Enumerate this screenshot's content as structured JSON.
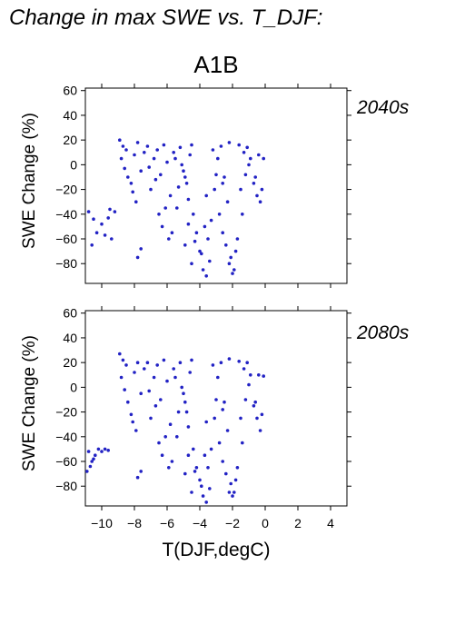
{
  "title": "Change in max SWE vs. T_DJF:",
  "scenario": "A1B",
  "xlabel": "T(DJF,degC)",
  "colors": {
    "points": "#2222c4",
    "axis": "#000000"
  },
  "chart_data": [
    {
      "type": "scatter",
      "panel_label": "2040s",
      "ylabel": "SWE Change (%)",
      "xlim": [
        -11,
        5
      ],
      "ylim": [
        -96,
        62
      ],
      "yticks": [
        -80,
        -60,
        -40,
        -20,
        0,
        20,
        40,
        60
      ],
      "xticks": [
        -10,
        -8,
        -6,
        -4,
        -2,
        0,
        2,
        4
      ],
      "series": [
        {
          "color": "#2222c4",
          "points": [
            [
              -10.8,
              -38
            ],
            [
              -10.5,
              -44
            ],
            [
              -10.3,
              -55
            ],
            [
              -10.0,
              -48
            ],
            [
              -9.8,
              -57
            ],
            [
              -9.6,
              -43
            ],
            [
              -9.5,
              -36
            ],
            [
              -9.4,
              -60
            ],
            [
              -10.6,
              -65
            ],
            [
              -9.2,
              -38
            ],
            [
              -8.9,
              20
            ],
            [
              -8.7,
              15
            ],
            [
              -8.5,
              12
            ],
            [
              -8.8,
              5
            ],
            [
              -8.6,
              -3
            ],
            [
              -8.4,
              -10
            ],
            [
              -8.2,
              -15
            ],
            [
              -8.0,
              8
            ],
            [
              -7.8,
              18
            ],
            [
              -7.6,
              -5
            ],
            [
              -7.4,
              10
            ],
            [
              -7.2,
              15
            ],
            [
              -7.0,
              -20
            ],
            [
              -6.8,
              5
            ],
            [
              -6.6,
              12
            ],
            [
              -6.4,
              -8
            ],
            [
              -6.2,
              16
            ],
            [
              -6.0,
              2
            ],
            [
              -5.8,
              -25
            ],
            [
              -5.6,
              10
            ],
            [
              -5.4,
              -35
            ],
            [
              -5.2,
              14
            ],
            [
              -5.0,
              -5
            ],
            [
              -4.8,
              -15
            ],
            [
              -4.6,
              8
            ],
            [
              -4.4,
              -40
            ],
            [
              -4.2,
              -55
            ],
            [
              -4.0,
              -70
            ],
            [
              -3.8,
              -85
            ],
            [
              -3.6,
              -90
            ],
            [
              -3.5,
              -60
            ],
            [
              -3.3,
              -45
            ],
            [
              -3.1,
              -20
            ],
            [
              -2.9,
              5
            ],
            [
              -2.7,
              15
            ],
            [
              -2.5,
              -10
            ],
            [
              -2.3,
              -30
            ],
            [
              -2.1,
              -75
            ],
            [
              -1.9,
              -85
            ],
            [
              -1.7,
              -60
            ],
            [
              -1.5,
              -20
            ],
            [
              -1.3,
              10
            ],
            [
              -1.1,
              14
            ],
            [
              -0.9,
              5
            ],
            [
              -0.7,
              -15
            ],
            [
              -0.5,
              -25
            ],
            [
              -0.3,
              -30
            ],
            [
              -0.1,
              5
            ],
            [
              -7.8,
              -75
            ],
            [
              -7.6,
              -68
            ],
            [
              -6.5,
              -40
            ],
            [
              -6.3,
              -50
            ],
            [
              -6.1,
              -35
            ],
            [
              -5.9,
              -60
            ],
            [
              -5.7,
              -55
            ],
            [
              -4.9,
              -65
            ],
            [
              -4.7,
              -48
            ],
            [
              -4.5,
              -80
            ],
            [
              -4.3,
              -62
            ],
            [
              -3.9,
              -72
            ],
            [
              -3.7,
              -50
            ],
            [
              -3.4,
              -78
            ],
            [
              -2.8,
              -40
            ],
            [
              -2.6,
              -55
            ],
            [
              -2.4,
              -65
            ],
            [
              -2.2,
              -80
            ],
            [
              -2.0,
              -88
            ],
            [
              -1.8,
              -70
            ],
            [
              -5.1,
              0
            ],
            [
              -4.9,
              -10
            ],
            [
              -5.3,
              -18
            ],
            [
              -4.7,
              -28
            ],
            [
              -5.5,
              5
            ],
            [
              -4.5,
              16
            ],
            [
              -6.7,
              -12
            ],
            [
              -7.1,
              -2
            ],
            [
              -8.1,
              -22
            ],
            [
              -7.9,
              -30
            ],
            [
              -3.2,
              12
            ],
            [
              -3.0,
              -8
            ],
            [
              -2.2,
              18
            ],
            [
              -1.6,
              16
            ],
            [
              -1.0,
              0
            ],
            [
              -0.6,
              -10
            ],
            [
              -0.2,
              -20
            ],
            [
              -0.4,
              8
            ],
            [
              -1.4,
              -40
            ],
            [
              -1.2,
              -8
            ],
            [
              -2.6,
              -15
            ],
            [
              -3.6,
              -25
            ]
          ]
        }
      ]
    },
    {
      "type": "scatter",
      "panel_label": "2080s",
      "ylabel": "SWE Change (%)",
      "xlim": [
        -11,
        5
      ],
      "ylim": [
        -96,
        62
      ],
      "yticks": [
        -80,
        -60,
        -40,
        -20,
        0,
        20,
        40,
        60
      ],
      "xticks": [
        -10,
        -8,
        -6,
        -4,
        -2,
        0,
        2,
        4
      ],
      "series": [
        {
          "color": "#2222c4",
          "points": [
            [
              -10.8,
              -52
            ],
            [
              -10.6,
              -60
            ],
            [
              -10.4,
              -55
            ],
            [
              -10.2,
              -50
            ],
            [
              -10.0,
              -52
            ],
            [
              -9.8,
              -50
            ],
            [
              -10.9,
              -68
            ],
            [
              -10.7,
              -64
            ],
            [
              -10.5,
              -58
            ],
            [
              -9.6,
              -51
            ],
            [
              -8.9,
              27
            ],
            [
              -8.7,
              22
            ],
            [
              -8.5,
              18
            ],
            [
              -8.8,
              8
            ],
            [
              -8.6,
              -2
            ],
            [
              -8.4,
              -12
            ],
            [
              -8.2,
              -22
            ],
            [
              -8.0,
              12
            ],
            [
              -7.8,
              20
            ],
            [
              -7.6,
              -5
            ],
            [
              -7.4,
              15
            ],
            [
              -7.2,
              20
            ],
            [
              -7.0,
              -25
            ],
            [
              -6.8,
              8
            ],
            [
              -6.6,
              18
            ],
            [
              -6.4,
              -10
            ],
            [
              -6.2,
              22
            ],
            [
              -6.0,
              5
            ],
            [
              -5.8,
              -30
            ],
            [
              -5.6,
              15
            ],
            [
              -5.4,
              -40
            ],
            [
              -5.2,
              20
            ],
            [
              -5.0,
              -5
            ],
            [
              -4.8,
              -20
            ],
            [
              -4.6,
              12
            ],
            [
              -4.4,
              -50
            ],
            [
              -4.2,
              -65
            ],
            [
              -4.0,
              -75
            ],
            [
              -3.8,
              -88
            ],
            [
              -3.6,
              -93
            ],
            [
              -3.5,
              -65
            ],
            [
              -3.3,
              -50
            ],
            [
              -3.1,
              -25
            ],
            [
              -2.9,
              8
            ],
            [
              -2.7,
              20
            ],
            [
              -2.5,
              -12
            ],
            [
              -2.3,
              -35
            ],
            [
              -2.1,
              -78
            ],
            [
              -1.9,
              -85
            ],
            [
              -1.7,
              -65
            ],
            [
              -1.5,
              -25
            ],
            [
              -1.3,
              15
            ],
            [
              -1.1,
              20
            ],
            [
              -0.9,
              10
            ],
            [
              -0.7,
              -15
            ],
            [
              -0.5,
              -25
            ],
            [
              -0.3,
              -35
            ],
            [
              -0.1,
              9
            ],
            [
              -7.8,
              -73
            ],
            [
              -7.6,
              -68
            ],
            [
              -6.5,
              -45
            ],
            [
              -6.3,
              -55
            ],
            [
              -6.1,
              -40
            ],
            [
              -5.9,
              -65
            ],
            [
              -5.7,
              -60
            ],
            [
              -4.9,
              -70
            ],
            [
              -4.7,
              -55
            ],
            [
              -4.5,
              -85
            ],
            [
              -4.3,
              -68
            ],
            [
              -3.9,
              -80
            ],
            [
              -3.7,
              -55
            ],
            [
              -3.4,
              -82
            ],
            [
              -2.8,
              -45
            ],
            [
              -2.6,
              -60
            ],
            [
              -2.4,
              -70
            ],
            [
              -2.2,
              -85
            ],
            [
              -2.0,
              -88
            ],
            [
              -1.8,
              -75
            ],
            [
              -5.1,
              0
            ],
            [
              -4.9,
              -12
            ],
            [
              -5.3,
              -20
            ],
            [
              -4.7,
              -32
            ],
            [
              -5.5,
              8
            ],
            [
              -4.5,
              22
            ],
            [
              -6.7,
              -15
            ],
            [
              -7.1,
              -3
            ],
            [
              -8.1,
              -28
            ],
            [
              -7.9,
              -35
            ],
            [
              -3.2,
              18
            ],
            [
              -3.0,
              -10
            ],
            [
              -2.2,
              23
            ],
            [
              -1.6,
              21
            ],
            [
              -1.0,
              2
            ],
            [
              -0.6,
              -12
            ],
            [
              -0.2,
              -22
            ],
            [
              -0.4,
              10
            ],
            [
              -1.4,
              -45
            ],
            [
              -1.2,
              -10
            ],
            [
              -2.6,
              -18
            ],
            [
              -3.6,
              -28
            ]
          ]
        }
      ]
    }
  ]
}
